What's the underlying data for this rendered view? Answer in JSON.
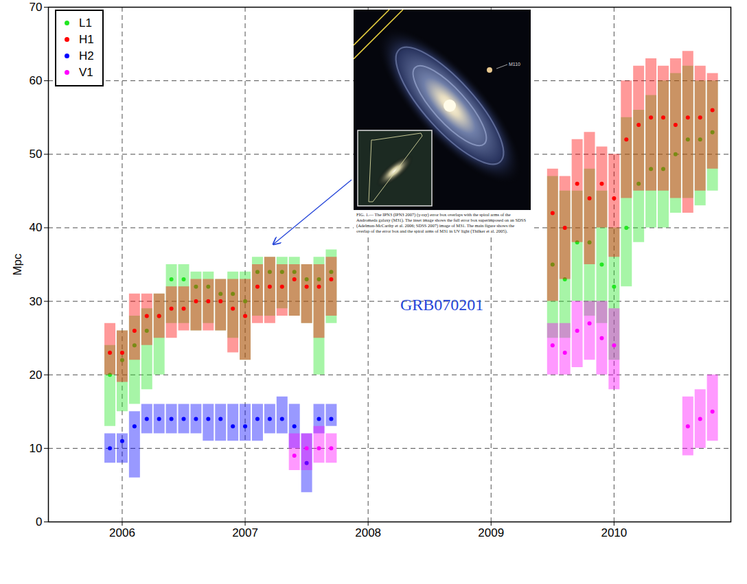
{
  "chart_data": {
    "type": "scatter",
    "marker": "dot",
    "y_label": "Mpc",
    "xlim": [
      2005.4,
      2010.95
    ],
    "xticks": [
      2006,
      2007,
      2008,
      2009,
      2010
    ],
    "ylim": [
      0,
      70
    ],
    "yticks": [
      0,
      10,
      20,
      30,
      40,
      50,
      60,
      70
    ],
    "grid": true,
    "legend": "top-left",
    "x": [
      2005.9,
      2006.0,
      2006.1,
      2006.2,
      2006.3,
      2006.4,
      2006.5,
      2006.6,
      2006.7,
      2006.8,
      2006.9,
      2007.0,
      2007.1,
      2007.2,
      2007.3,
      2007.4,
      2007.5,
      2007.6,
      2007.7,
      2009.5,
      2009.6,
      2009.7,
      2009.8,
      2009.9,
      2010.0,
      2010.1,
      2010.2,
      2010.3,
      2010.4,
      2010.5,
      2010.6,
      2010.7,
      2010.8
    ],
    "series": [
      {
        "name": "L1",
        "color": "#22e622",
        "values": [
          20,
          22,
          24,
          26,
          28,
          33,
          33,
          32,
          32,
          31,
          31,
          30,
          34,
          34,
          34,
          34,
          33,
          33,
          34,
          35,
          33,
          38,
          38,
          35,
          32,
          40,
          46,
          48,
          48,
          50,
          52,
          52,
          53
        ],
        "low": [
          13,
          15,
          16,
          18,
          20,
          27,
          27,
          26,
          27,
          26,
          25,
          22,
          28,
          28,
          29,
          28,
          27,
          20,
          27,
          25,
          25,
          30,
          28,
          27,
          22,
          32,
          38,
          40,
          40,
          42,
          44,
          43,
          45
        ],
        "high": [
          24,
          26,
          28,
          29,
          31,
          35,
          35,
          34,
          34,
          33,
          34,
          34,
          36,
          36,
          36,
          36,
          35,
          36,
          37,
          47,
          45,
          45,
          48,
          45,
          40,
          55,
          56,
          58,
          60,
          61,
          62,
          60,
          60
        ]
      },
      {
        "name": "H1",
        "color": "#ff0000",
        "values": [
          23,
          23,
          26,
          28,
          28,
          29,
          29,
          30,
          30,
          30,
          29,
          28,
          32,
          32,
          32,
          33,
          32,
          32,
          33,
          42,
          40,
          46,
          44,
          46,
          44,
          52,
          54,
          55,
          55,
          54,
          55,
          55,
          56
        ],
        "low": [
          20,
          19,
          22,
          24,
          25,
          25,
          26,
          26,
          26,
          26,
          23,
          22,
          27,
          27,
          28,
          28,
          27,
          25,
          28,
          30,
          33,
          38,
          35,
          40,
          36,
          44,
          45,
          45,
          45,
          44,
          42,
          45,
          48
        ],
        "high": [
          27,
          26,
          31,
          31,
          31,
          32,
          32,
          33,
          33,
          33,
          33,
          33,
          35,
          36,
          35,
          35,
          35,
          35,
          36,
          48,
          47,
          52,
          53,
          51,
          50,
          60,
          62,
          63,
          62,
          63,
          64,
          62,
          61
        ]
      },
      {
        "name": "H2",
        "color": "#0000ff",
        "values": [
          10,
          11,
          13,
          14,
          14,
          14,
          14,
          14,
          14,
          14,
          13,
          13,
          14,
          14,
          14,
          13,
          8,
          14,
          14,
          null,
          null,
          null,
          null,
          null,
          null,
          null,
          null,
          null,
          null,
          null,
          null,
          null,
          null
        ],
        "low": [
          8,
          8,
          6,
          12,
          12,
          12,
          12,
          12,
          11,
          11,
          11,
          11,
          11,
          12,
          12,
          10,
          4,
          12,
          13,
          null,
          null,
          null,
          null,
          null,
          null,
          null,
          null,
          null,
          null,
          null,
          null,
          null,
          null
        ],
        "high": [
          12,
          12,
          15,
          16,
          16,
          16,
          16,
          16,
          16,
          16,
          16,
          16,
          16,
          16,
          17,
          16,
          12,
          16,
          16,
          null,
          null,
          null,
          null,
          null,
          null,
          null,
          null,
          null,
          null,
          null,
          null,
          null,
          null
        ]
      },
      {
        "name": "V1",
        "color": "#ff00ff",
        "values": [
          null,
          null,
          null,
          null,
          null,
          null,
          null,
          null,
          null,
          null,
          null,
          null,
          null,
          null,
          null,
          9,
          10,
          10,
          10,
          24,
          23,
          26,
          27,
          25,
          24,
          null,
          null,
          null,
          null,
          null,
          13,
          14,
          15
        ],
        "low": [
          null,
          null,
          null,
          null,
          null,
          null,
          null,
          null,
          null,
          null,
          null,
          null,
          null,
          null,
          null,
          7,
          7,
          8,
          8,
          20,
          20,
          21,
          22,
          20,
          18,
          null,
          null,
          null,
          null,
          null,
          9,
          10,
          11
        ],
        "high": [
          null,
          null,
          null,
          null,
          null,
          null,
          null,
          null,
          null,
          null,
          null,
          null,
          null,
          null,
          null,
          12,
          12,
          13,
          12,
          27,
          27,
          30,
          30,
          30,
          29,
          null,
          null,
          null,
          null,
          null,
          17,
          18,
          20
        ]
      }
    ],
    "annotations": [
      {
        "text": "GRB070201",
        "x": 2008.6,
        "y": 29.5,
        "color": "#2646d9"
      }
    ],
    "inset": {
      "label": "M110",
      "caption": "FIG. 1.— The IPN3 (IPN3 2007) (γ-ray) error box overlaps with the spiral arms of the Andromeda galaxy (M31). The inset image shows the full error box superimposed on an SDSS (Adelman-McCarthy et al. 2006; SDSS 2007) image of M31. The main figure shows the overlap of the error box and the spiral arms of M31 in UV light (Thilker et al. 2005)."
    }
  }
}
